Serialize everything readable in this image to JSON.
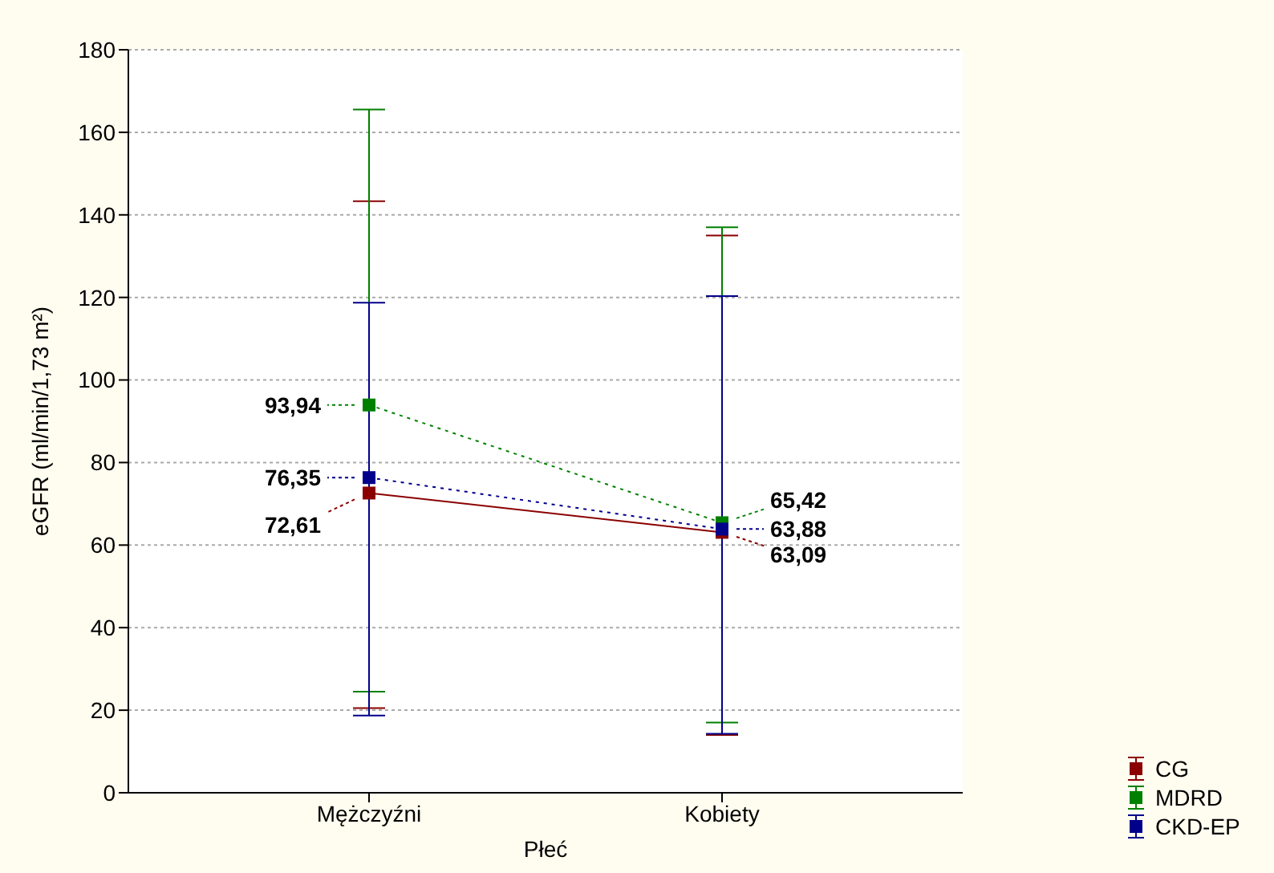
{
  "chart_data": {
    "type": "line",
    "xlabel": "Płeć",
    "ylabel": "eGFR  (ml/min/1,73 m²)",
    "categories": [
      "Mężczyźni",
      "Kobiety"
    ],
    "series": [
      {
        "name": "CG",
        "color": "#8b0000",
        "values": [
          72.61,
          63.09
        ],
        "value_labels": [
          "72,61",
          "63,09"
        ],
        "errors": [
          [
            20.5,
            143.3
          ],
          [
            14,
            135
          ]
        ],
        "line_style": "solid"
      },
      {
        "name": "MDRD",
        "color": "#008000",
        "values": [
          93.94,
          65.42
        ],
        "value_labels": [
          "93,94",
          "65,42"
        ],
        "errors": [
          [
            24.5,
            165.5
          ],
          [
            17,
            137
          ]
        ],
        "line_style": "dotted"
      },
      {
        "name": "CKD-EP",
        "color": "#00008b",
        "values": [
          76.35,
          63.88
        ],
        "value_labels": [
          "76,35",
          "63,88"
        ],
        "errors": [
          [
            18.7,
            118.7
          ],
          [
            14.3,
            120.3
          ]
        ],
        "line_style": "dotted"
      }
    ],
    "ylim": [
      0,
      180
    ],
    "yticks": [
      0,
      20,
      40,
      60,
      80,
      100,
      120,
      140,
      160,
      180
    ],
    "grid": "y",
    "legend": "bottom right",
    "marker": "square"
  }
}
